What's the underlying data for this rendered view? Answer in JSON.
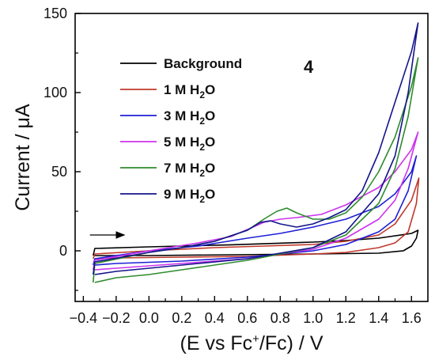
{
  "chart_data": {
    "type": "line",
    "title": "",
    "panel_label": "4",
    "xlabel_parts": {
      "pre": "(E vs Fc",
      "sup": "+",
      "post": "/Fc) / V"
    },
    "ylabel": "Current / μA",
    "xlim": [
      -0.45,
      1.7
    ],
    "ylim": [
      -32,
      150
    ],
    "x_ticks": [
      -0.4,
      -0.2,
      0.0,
      0.2,
      0.4,
      0.6,
      0.8,
      1.0,
      1.2,
      1.4,
      1.6
    ],
    "x_tick_labels": [
      "−0.4",
      "−0.2",
      "0.0",
      "0.2",
      "0.4",
      "0.6",
      "0.8",
      "1.0",
      "1.2",
      "1.4",
      "1.6"
    ],
    "y_ticks": [
      0,
      50,
      100,
      150
    ],
    "y_tick_labels": [
      "0",
      "50",
      "100",
      "150"
    ],
    "legend_placement": "upper-center",
    "scan_arrow": {
      "from": [
        -0.36,
        10
      ],
      "to": [
        -0.15,
        10
      ],
      "color": "#000000"
    },
    "series": [
      {
        "name": "Background",
        "name_parts": [
          "Background"
        ],
        "color": "#000000",
        "points": [
          [
            -0.33,
            -3
          ],
          [
            0.0,
            -3
          ],
          [
            0.5,
            -2.5
          ],
          [
            1.0,
            -2
          ],
          [
            1.4,
            -1.5
          ],
          [
            1.55,
            0
          ],
          [
            1.6,
            3
          ],
          [
            1.63,
            8
          ],
          [
            1.64,
            13
          ],
          [
            1.6,
            11
          ],
          [
            1.4,
            8
          ],
          [
            1.2,
            6.5
          ],
          [
            1.0,
            5.5
          ],
          [
            0.5,
            3.8
          ],
          [
            0.0,
            2.5
          ],
          [
            -0.33,
            1.5
          ],
          [
            -0.34,
            -3
          ]
        ]
      },
      {
        "name": "1 M H2O",
        "name_parts": [
          "1 M H",
          "2",
          "O"
        ],
        "color": "#c0392b",
        "points": [
          [
            -0.33,
            -5
          ],
          [
            -0.2,
            -4.5
          ],
          [
            0.2,
            -4
          ],
          [
            0.6,
            -3.5
          ],
          [
            1.0,
            -2
          ],
          [
            1.2,
            -1
          ],
          [
            1.4,
            2
          ],
          [
            1.5,
            5
          ],
          [
            1.58,
            12
          ],
          [
            1.63,
            30
          ],
          [
            1.645,
            46
          ],
          [
            1.6,
            32
          ],
          [
            1.5,
            17
          ],
          [
            1.4,
            10
          ],
          [
            1.2,
            6
          ],
          [
            1.0,
            4
          ],
          [
            0.7,
            3
          ],
          [
            0.4,
            2
          ],
          [
            0.0,
            0
          ],
          [
            -0.33,
            -2
          ],
          [
            -0.34,
            -5
          ]
        ]
      },
      {
        "name": "3 M H2O",
        "name_parts": [
          "3 M H",
          "2",
          "O"
        ],
        "color": "#1f1fd6",
        "points": [
          [
            -0.33,
            -9
          ],
          [
            -0.2,
            -8
          ],
          [
            0.2,
            -6.5
          ],
          [
            0.6,
            -4
          ],
          [
            1.0,
            0
          ],
          [
            1.2,
            4
          ],
          [
            1.4,
            12
          ],
          [
            1.5,
            20
          ],
          [
            1.58,
            38
          ],
          [
            1.63,
            60
          ],
          [
            1.6,
            50
          ],
          [
            1.5,
            36
          ],
          [
            1.4,
            28
          ],
          [
            1.2,
            20
          ],
          [
            1.0,
            15
          ],
          [
            0.8,
            11
          ],
          [
            0.6,
            8
          ],
          [
            0.3,
            3
          ],
          [
            0.0,
            0
          ],
          [
            -0.33,
            -5
          ],
          [
            -0.34,
            -9
          ]
        ]
      },
      {
        "name": "5 M H2O",
        "name_parts": [
          "5 M H",
          "2",
          "O"
        ],
        "color": "#cc33ee",
        "points": [
          [
            -0.33,
            -12
          ],
          [
            -0.2,
            -11
          ],
          [
            0.2,
            -8
          ],
          [
            0.6,
            -5
          ],
          [
            1.0,
            1
          ],
          [
            1.2,
            8
          ],
          [
            1.4,
            20
          ],
          [
            1.5,
            32
          ],
          [
            1.58,
            52
          ],
          [
            1.64,
            75
          ],
          [
            1.6,
            64
          ],
          [
            1.5,
            50
          ],
          [
            1.4,
            40
          ],
          [
            1.2,
            29
          ],
          [
            1.05,
            23
          ],
          [
            0.9,
            21
          ],
          [
            0.8,
            20
          ],
          [
            0.7,
            18
          ],
          [
            0.5,
            9
          ],
          [
            0.3,
            5
          ],
          [
            0.0,
            0
          ],
          [
            -0.33,
            -6
          ],
          [
            -0.34,
            -12
          ]
        ]
      },
      {
        "name": "7 M H2O",
        "name_parts": [
          "7 M H",
          "2",
          "O"
        ],
        "color": "#2e8b2e",
        "points": [
          [
            -0.33,
            -20
          ],
          [
            -0.2,
            -17
          ],
          [
            0.0,
            -15
          ],
          [
            0.2,
            -12
          ],
          [
            0.6,
            -6
          ],
          [
            1.0,
            2
          ],
          [
            1.2,
            10
          ],
          [
            1.4,
            30
          ],
          [
            1.5,
            52
          ],
          [
            1.58,
            85
          ],
          [
            1.64,
            122
          ],
          [
            1.6,
            104
          ],
          [
            1.5,
            72
          ],
          [
            1.4,
            50
          ],
          [
            1.3,
            34
          ],
          [
            1.2,
            24
          ],
          [
            1.1,
            20
          ],
          [
            1.0,
            20
          ],
          [
            0.9,
            24
          ],
          [
            0.84,
            27
          ],
          [
            0.78,
            25
          ],
          [
            0.7,
            20
          ],
          [
            0.6,
            13
          ],
          [
            0.4,
            6
          ],
          [
            0.2,
            2
          ],
          [
            0.0,
            -1
          ],
          [
            -0.33,
            -8
          ],
          [
            -0.34,
            -20
          ]
        ]
      },
      {
        "name": "9 M H2O",
        "name_parts": [
          "9 M H",
          "2",
          "O"
        ],
        "color": "#14148c",
        "points": [
          [
            -0.33,
            -15
          ],
          [
            -0.2,
            -13
          ],
          [
            0.0,
            -11
          ],
          [
            0.2,
            -9
          ],
          [
            0.6,
            -5
          ],
          [
            1.0,
            2
          ],
          [
            1.2,
            12
          ],
          [
            1.4,
            36
          ],
          [
            1.5,
            60
          ],
          [
            1.58,
            100
          ],
          [
            1.64,
            144
          ],
          [
            1.6,
            126
          ],
          [
            1.5,
            94
          ],
          [
            1.4,
            62
          ],
          [
            1.3,
            38
          ],
          [
            1.2,
            26
          ],
          [
            1.1,
            21
          ],
          [
            1.0,
            17
          ],
          [
            0.9,
            15
          ],
          [
            0.8,
            17
          ],
          [
            0.74,
            19
          ],
          [
            0.68,
            18
          ],
          [
            0.6,
            13
          ],
          [
            0.4,
            6
          ],
          [
            0.2,
            2
          ],
          [
            0.0,
            -1
          ],
          [
            -0.33,
            -7
          ],
          [
            -0.34,
            -15
          ]
        ]
      }
    ]
  }
}
